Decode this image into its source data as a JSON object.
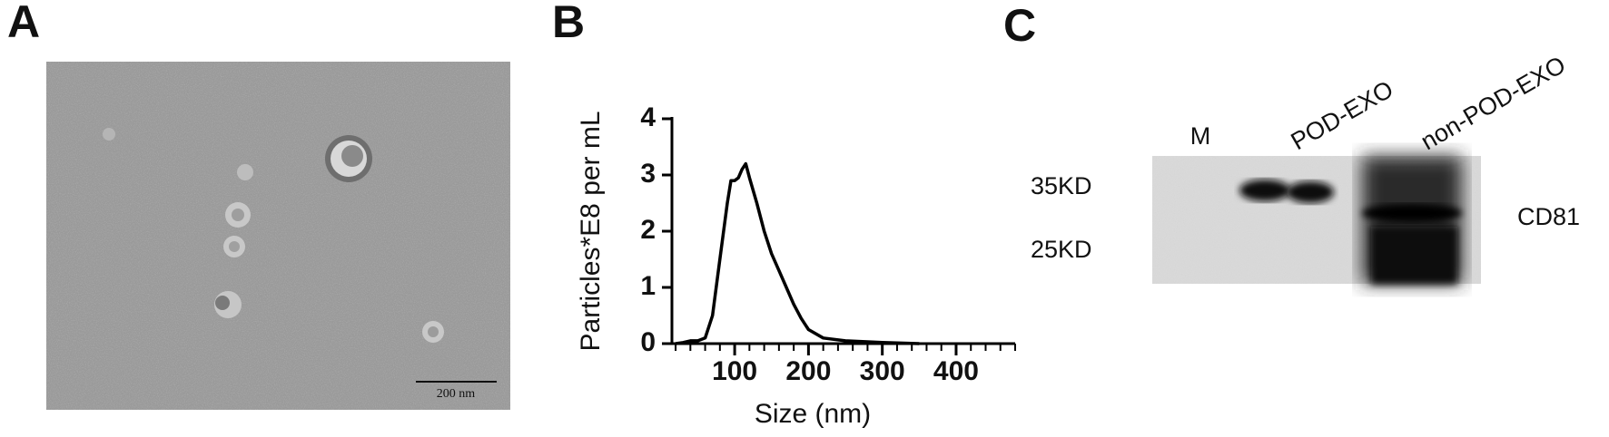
{
  "panel_A": {
    "label": "A",
    "scale_bar": "200 nm"
  },
  "chart_data": {
    "type": "line",
    "panel_label": "B",
    "x_label": "Size (nm)",
    "y_label": "Particles*E8 per mL",
    "x": [
      20,
      30,
      40,
      50,
      60,
      70,
      80,
      90,
      95,
      100,
      105,
      110,
      115,
      120,
      130,
      140,
      150,
      160,
      170,
      180,
      190,
      200,
      220,
      250,
      300,
      350
    ],
    "values": [
      0,
      0.02,
      0.05,
      0.05,
      0.1,
      0.5,
      1.5,
      2.5,
      2.9,
      2.9,
      2.95,
      3.1,
      3.2,
      2.95,
      2.5,
      2.0,
      1.6,
      1.3,
      1.0,
      0.7,
      0.45,
      0.25,
      0.1,
      0.05,
      0.02,
      0
    ],
    "color": "#000000",
    "xlim": [
      15,
      480
    ],
    "xticks": [
      100,
      200,
      300,
      400
    ],
    "xminorticks": [
      20,
      40,
      60,
      80,
      120,
      140,
      160,
      180,
      220,
      240,
      260,
      280,
      320,
      340,
      360,
      380,
      420,
      440,
      460,
      480
    ],
    "ylim": [
      0,
      4
    ],
    "yticks": [
      0,
      1,
      2,
      3,
      4
    ],
    "grid": false
  },
  "panel_C": {
    "label": "C",
    "lanes": [
      "M",
      "POD-EXO",
      "non-POD-EXO"
    ],
    "markers": [
      "35KD",
      "25KD"
    ],
    "protein": "CD81"
  }
}
